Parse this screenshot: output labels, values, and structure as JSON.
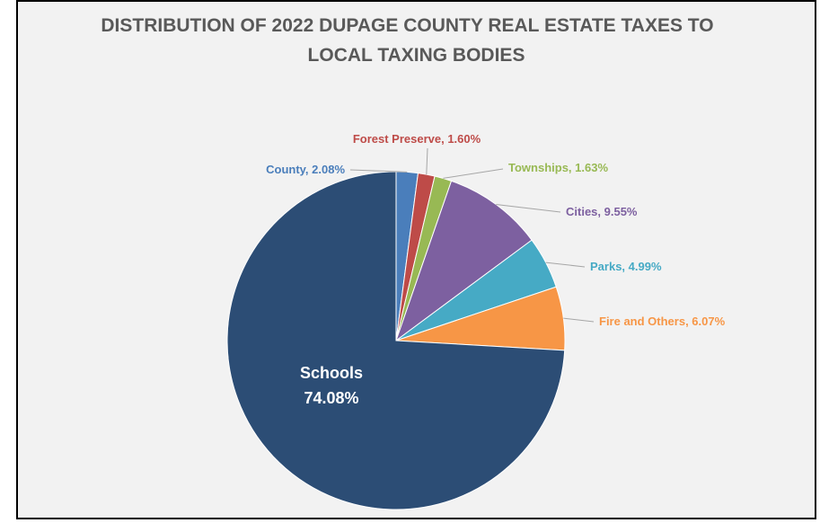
{
  "chart_data": {
    "type": "pie",
    "title": "DISTRIBUTION OF 2022 DUPAGE COUNTY REAL ESTATE TAXES TO LOCAL TAXING BODIES",
    "title_lines": [
      "DISTRIBUTION OF 2022 DUPAGE COUNTY REAL ESTATE TAXES TO",
      "LOCAL TAXING BODIES"
    ],
    "start_angle_deg": 0,
    "direction": "clockwise",
    "slices": [
      {
        "name": "County",
        "value": 2.08,
        "label": "County, 2.08%",
        "color": "#4a7ebb",
        "label_color": "#4a7ebb"
      },
      {
        "name": "Forest Preserve",
        "value": 1.6,
        "label": "Forest Preserve, 1.60%",
        "color": "#be4b48",
        "label_color": "#be4b48"
      },
      {
        "name": "Townships",
        "value": 1.63,
        "label": "Townships, 1.63%",
        "color": "#98b954",
        "label_color": "#98b954"
      },
      {
        "name": "Cities",
        "value": 9.55,
        "label": "Cities, 9.55%",
        "color": "#7d60a0",
        "label_color": "#7d60a0"
      },
      {
        "name": "Parks",
        "value": 4.99,
        "label": "Parks, 4.99%",
        "color": "#46aac5",
        "label_color": "#46aac5"
      },
      {
        "name": "Fire and Others",
        "value": 6.07,
        "label": "Fire and Others, 6.07%",
        "color": "#f79646",
        "label_color": "#f79646"
      },
      {
        "name": "Schools",
        "value": 74.08,
        "label_name": "Schools",
        "label_value": "74.08%",
        "color": "#2c4d75",
        "label_color": "#ffffff"
      }
    ],
    "background": "#f2f2f2",
    "title_color": "#595959",
    "leader_line_color": "#a6a6a6"
  }
}
